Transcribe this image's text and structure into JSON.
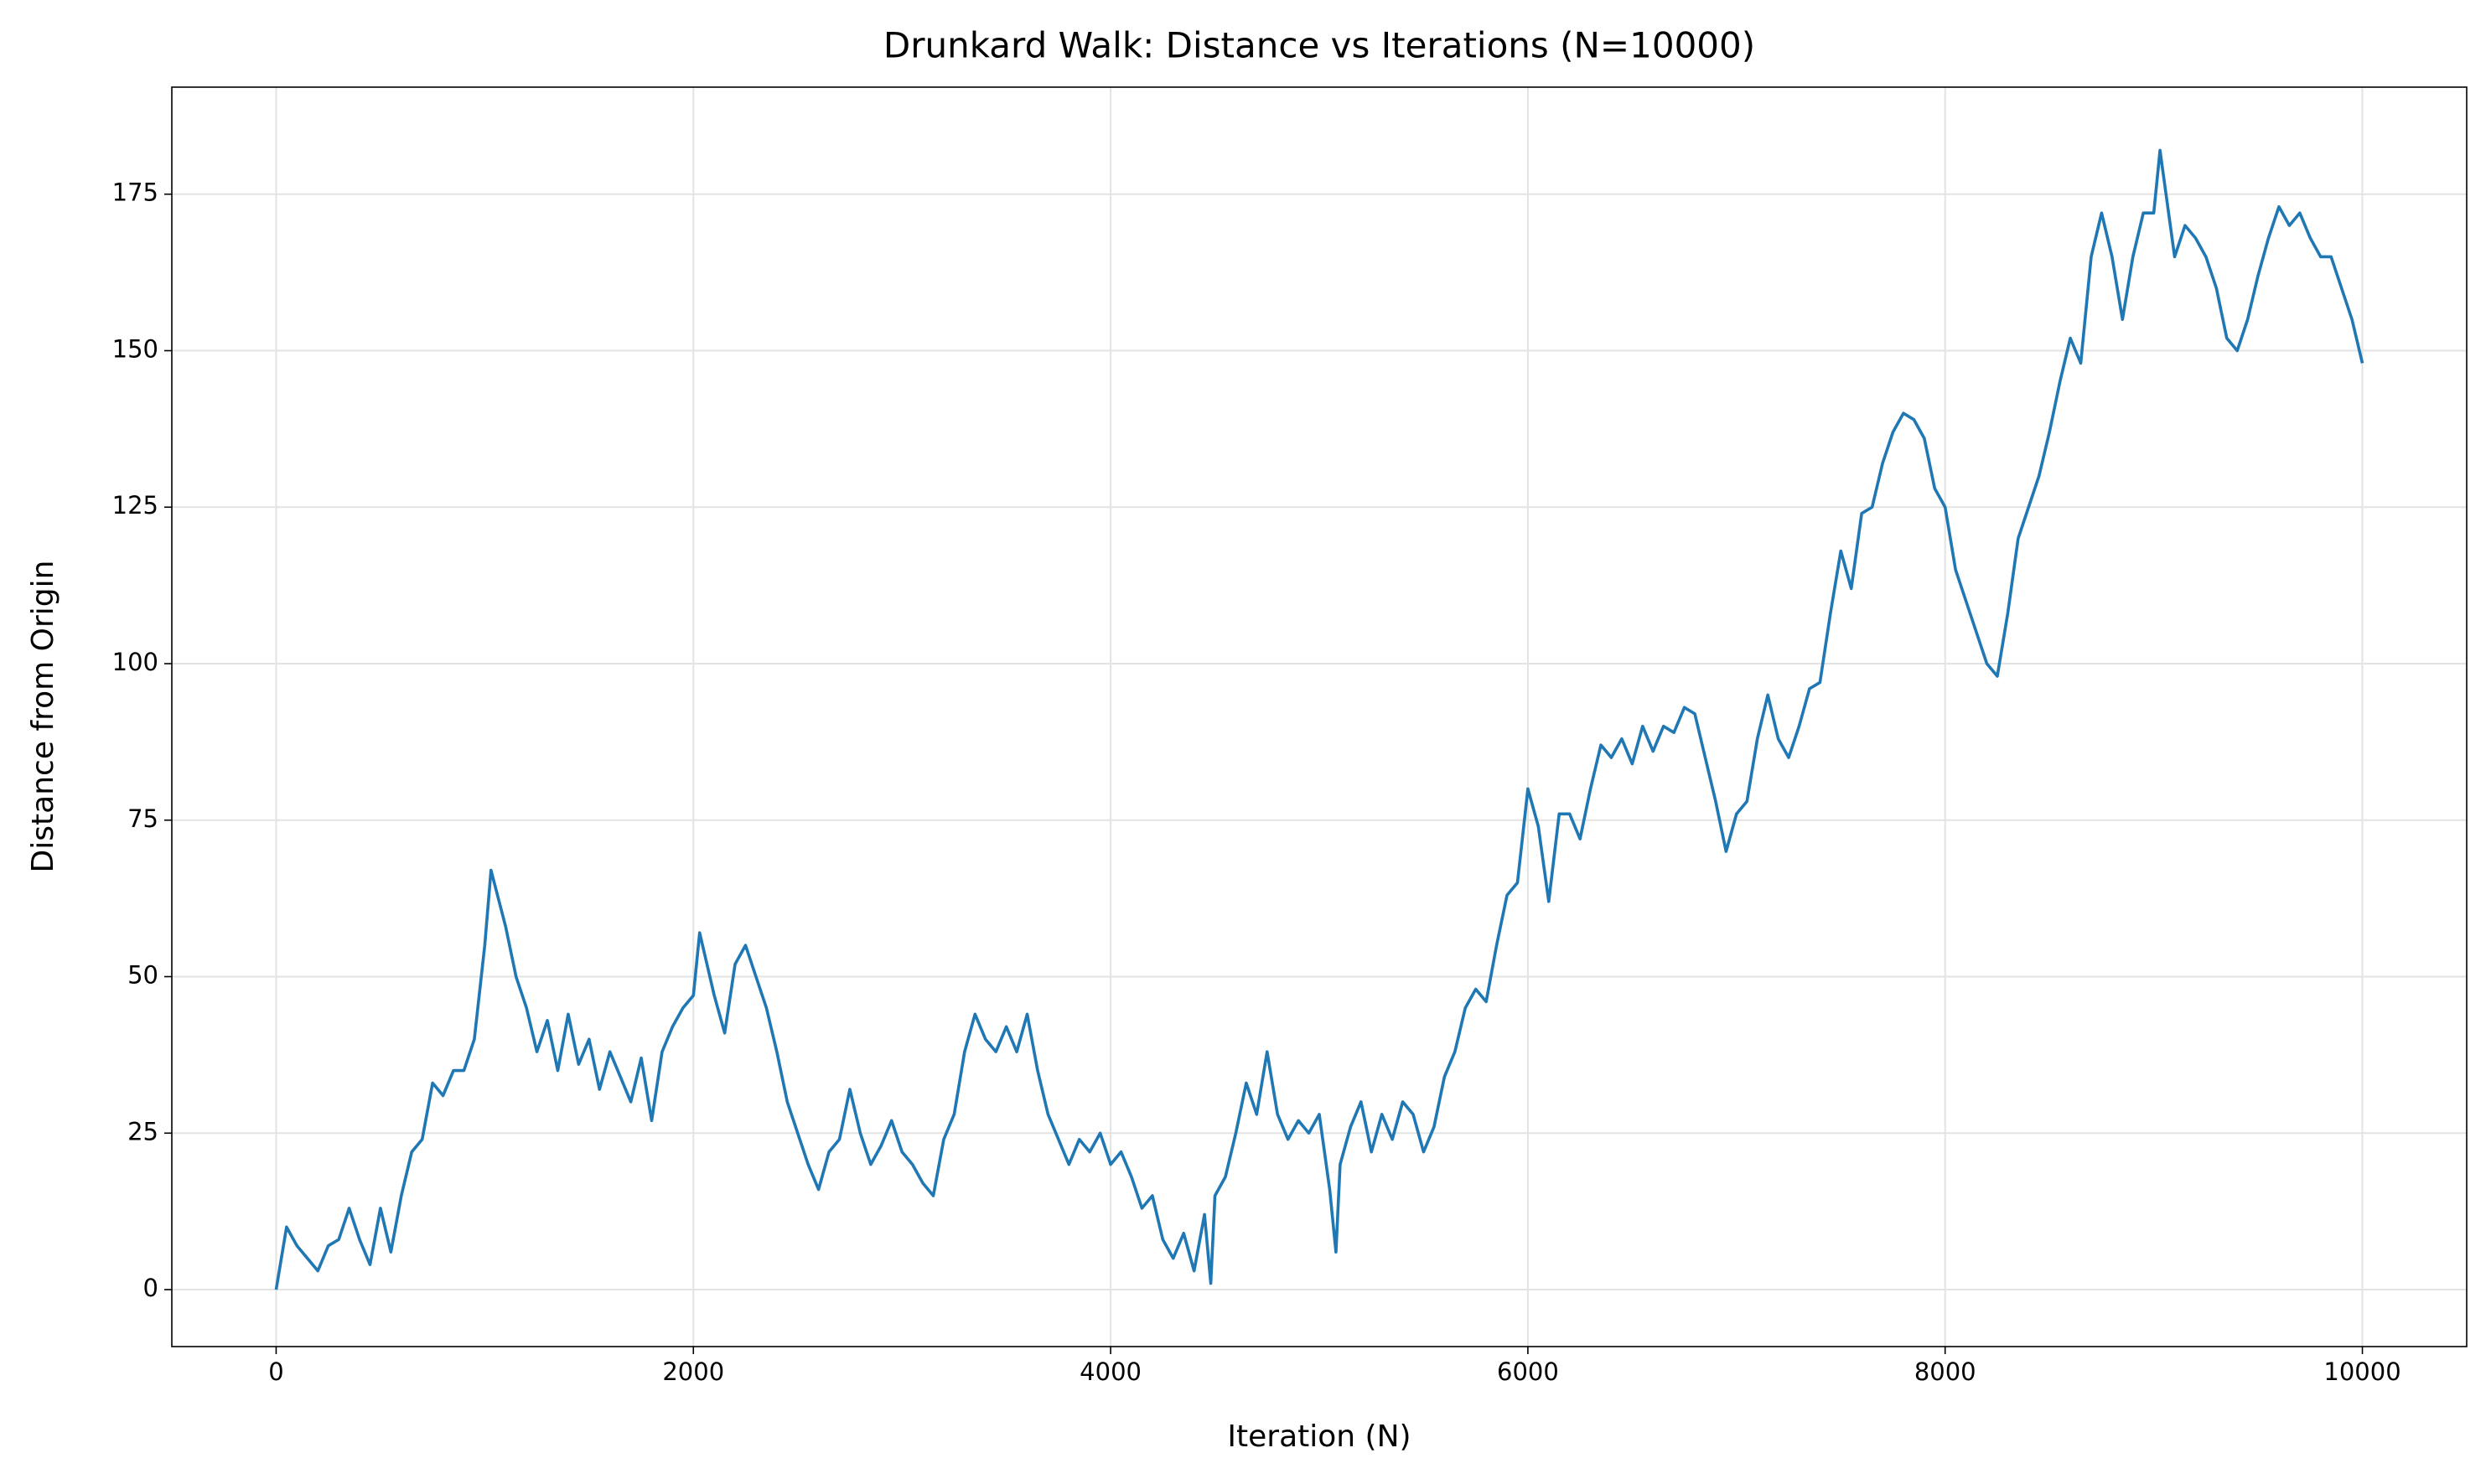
{
  "chart_data": {
    "type": "line",
    "title": "Drunkard Walk: Distance vs Iterations (N=10000)",
    "x_label": "Iteration (N)",
    "y_label": "Distance from Origin",
    "x": [
      0,
      50,
      100,
      150,
      200,
      250,
      300,
      350,
      400,
      450,
      500,
      550,
      600,
      650,
      700,
      750,
      800,
      850,
      900,
      950,
      1000,
      1030,
      1100,
      1150,
      1200,
      1250,
      1300,
      1350,
      1400,
      1450,
      1500,
      1550,
      1600,
      1700,
      1750,
      1800,
      1850,
      1900,
      1950,
      2000,
      2030,
      2100,
      2150,
      2200,
      2250,
      2300,
      2350,
      2400,
      2450,
      2500,
      2550,
      2600,
      2650,
      2700,
      2750,
      2800,
      2850,
      2900,
      2950,
      3000,
      3050,
      3100,
      3150,
      3200,
      3250,
      3300,
      3350,
      3400,
      3450,
      3500,
      3550,
      3600,
      3650,
      3700,
      3750,
      3800,
      3850,
      3900,
      3950,
      4000,
      4050,
      4100,
      4150,
      4200,
      4250,
      4300,
      4350,
      4400,
      4450,
      4480,
      4500,
      4550,
      4600,
      4650,
      4700,
      4750,
      4800,
      4850,
      4900,
      4950,
      5000,
      5050,
      5080,
      5100,
      5150,
      5200,
      5250,
      5300,
      5350,
      5400,
      5450,
      5500,
      5550,
      5600,
      5650,
      5700,
      5750,
      5800,
      5850,
      5900,
      5950,
      6000,
      6050,
      6100,
      6150,
      6200,
      6250,
      6300,
      6350,
      6400,
      6450,
      6500,
      6550,
      6600,
      6650,
      6700,
      6750,
      6800,
      6850,
      6900,
      6950,
      7000,
      7050,
      7100,
      7150,
      7200,
      7250,
      7300,
      7350,
      7400,
      7450,
      7500,
      7550,
      7600,
      7650,
      7700,
      7750,
      7800,
      7850,
      7900,
      7950,
      8000,
      8050,
      8100,
      8150,
      8200,
      8250,
      8300,
      8350,
      8400,
      8450,
      8500,
      8550,
      8600,
      8650,
      8700,
      8750,
      8800,
      8850,
      8900,
      8950,
      9000,
      9030,
      9100,
      9150,
      9200,
      9250,
      9300,
      9350,
      9400,
      9450,
      9500,
      9550,
      9600,
      9650,
      9700,
      9750,
      9800,
      9850,
      9900,
      9950,
      10000
    ],
    "series": [
      {
        "name": "Distance",
        "color": "#1f77b4",
        "values": [
          0,
          10,
          7,
          5,
          3,
          7,
          8,
          13,
          8,
          4,
          13,
          6,
          15,
          22,
          24,
          33,
          31,
          35,
          35,
          40,
          55,
          67,
          58,
          50,
          45,
          38,
          43,
          35,
          44,
          36,
          40,
          32,
          38,
          30,
          37,
          27,
          38,
          42,
          45,
          47,
          57,
          47,
          41,
          52,
          55,
          50,
          45,
          38,
          30,
          25,
          20,
          16,
          22,
          24,
          32,
          25,
          20,
          23,
          27,
          22,
          20,
          17,
          15,
          24,
          28,
          38,
          44,
          40,
          38,
          42,
          38,
          44,
          35,
          28,
          24,
          20,
          24,
          22,
          25,
          20,
          22,
          18,
          13,
          15,
          8,
          5,
          9,
          3,
          12,
          1,
          15,
          18,
          25,
          33,
          28,
          38,
          28,
          24,
          27,
          25,
          28,
          16,
          6,
          20,
          26,
          30,
          22,
          28,
          24,
          30,
          28,
          22,
          26,
          34,
          38,
          45,
          48,
          46,
          55,
          63,
          65,
          80,
          74,
          62,
          76,
          76,
          72,
          80,
          87,
          85,
          88,
          84,
          90,
          86,
          90,
          89,
          93,
          92,
          85,
          78,
          70,
          76,
          78,
          88,
          95,
          88,
          85,
          90,
          96,
          97,
          108,
          118,
          112,
          124,
          125,
          132,
          137,
          140,
          139,
          136,
          128,
          125,
          115,
          110,
          105,
          100,
          98,
          108,
          120,
          125,
          130,
          137,
          145,
          152,
          148,
          165,
          172,
          165,
          155,
          165,
          172,
          172,
          182,
          165,
          170,
          168,
          165,
          160,
          152,
          150,
          155,
          162,
          168,
          173,
          170,
          172,
          168,
          165,
          165,
          160,
          155,
          148
        ]
      }
    ],
    "xlim": [
      -500,
      10500
    ],
    "ylim": [
      -9.1,
      192.1
    ],
    "xticks": [
      0,
      2000,
      4000,
      6000,
      8000,
      10000
    ],
    "yticks": [
      0,
      25,
      50,
      75,
      100,
      125,
      150,
      175
    ],
    "grid": true
  }
}
